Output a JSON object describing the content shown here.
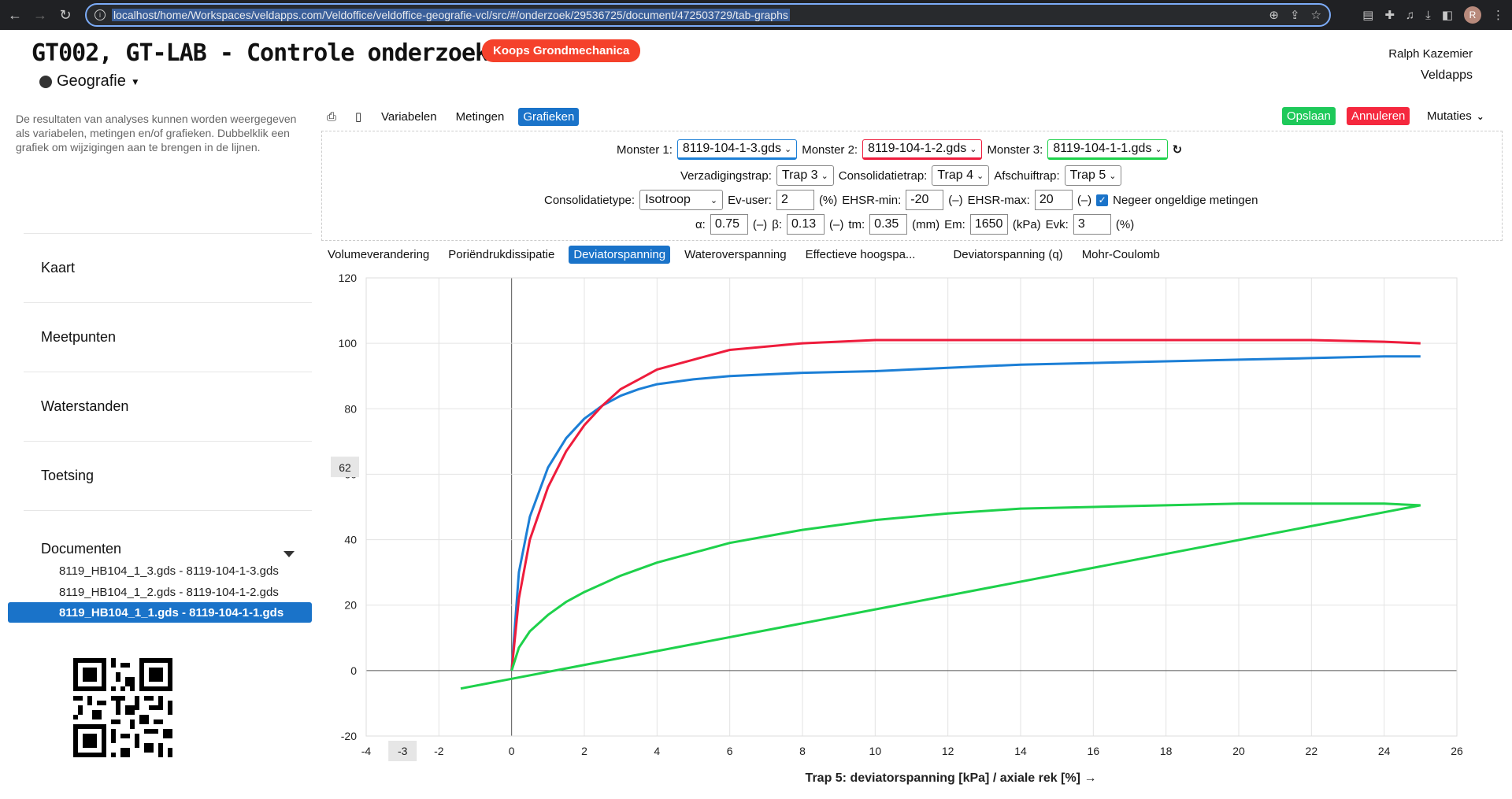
{
  "browser": {
    "url": "localhost/home/Workspaces/veldapps.com/Veldoffice/veldoffice-geografie-vcl/src/#/onderzoek/29536725/document/472503729/tab-graphs",
    "profile_initial": "R"
  },
  "header": {
    "title": "GT002, GT-LAB - Controle onderzoek",
    "badge": "Koops Grondmechanica",
    "app_menu": "Geografie",
    "user_name": "Ralph Kazemier",
    "org": "Veldapps"
  },
  "sidebar": {
    "description": "De resultaten van analyses kunnen worden weergegeven als variabelen, metingen en/of grafieken. Dubbelklik een grafiek om wijzigingen aan te brengen in de lijnen.",
    "items": [
      {
        "label": "Kaart"
      },
      {
        "label": "Meetpunten"
      },
      {
        "label": "Waterstanden"
      },
      {
        "label": "Toetsing"
      }
    ],
    "documents_label": "Documenten",
    "documents": [
      {
        "label": "8119_HB104_1_3.gds - 8119-104-1-3.gds"
      },
      {
        "label": "8119_HB104_1_2.gds - 8119-104-1-2.gds"
      },
      {
        "label": "8119_HB104_1_1.gds - 8119-104-1-1.gds"
      }
    ]
  },
  "toolbar": {
    "tabs": [
      "Variabelen",
      "Metingen",
      "Grafieken"
    ],
    "save": "Opslaan",
    "cancel": "Annuleren",
    "mutations": "Mutaties",
    "save_color": "#1ec95a",
    "cancel_color": "#f5283e"
  },
  "settings": {
    "monster1_label": "Monster 1:",
    "monster1": "8119-104-1-3.gds",
    "monster2_label": "Monster 2:",
    "monster2": "8119-104-1-2.gds",
    "monster3_label": "Monster 3:",
    "monster3": "8119-104-1-1.gds",
    "verzadiging_label": "Verzadigingstrap:",
    "verzadiging": "Trap 3",
    "consolidatie_label": "Consolidatietrap:",
    "consolidatie": "Trap 4",
    "afschuif_label": "Afschuiftrap:",
    "afschuif": "Trap 5",
    "consolidatietype_label": "Consolidatietype:",
    "consolidatietype": "Isotroop",
    "ev_user_label": "Ev-user:",
    "ev_user": "2",
    "ev_user_unit": "(%)",
    "ehsr_min_label": "EHSR-min:",
    "ehsr_min": "-20",
    "ehsr_min_unit": "(–)",
    "ehsr_max_label": "EHSR-max:",
    "ehsr_max": "20",
    "ehsr_max_unit": "(–)",
    "negeer_label": "Negeer ongeldige metingen",
    "alpha_label": "α:",
    "alpha": "0.75",
    "alpha_unit": "(–)",
    "beta_label": "β:",
    "beta": "0.13",
    "beta_unit": "(–)",
    "tm_label": "tm:",
    "tm": "0.35",
    "tm_unit": "(mm)",
    "em_label": "Em:",
    "em": "1650",
    "em_unit": "(kPa)",
    "evk_label": "Evk:",
    "evk": "3",
    "evk_unit": "(%)"
  },
  "chart_tabs": [
    "Volumeverandering",
    "Poriëndrukdissipatie",
    "Deviatorspanning",
    "Wateroverspanning",
    "Effectieve hoogspa...",
    "Deviatorspanning (q)",
    "Mohr-Coulomb"
  ],
  "chart_data": {
    "type": "line",
    "xlabel": "Trap 5: deviatorspanning [kPa] / axiale rek [%] →",
    "ylabel": "",
    "xlim": [
      -4,
      26
    ],
    "ylim": [
      -20,
      120
    ],
    "xticks": [
      -4,
      -2,
      0,
      2,
      4,
      6,
      8,
      10,
      12,
      14,
      16,
      18,
      20,
      22,
      24,
      26
    ],
    "yticks": [
      -20,
      0,
      20,
      40,
      60,
      80,
      100,
      120
    ],
    "crosshair_x_label": "-3",
    "crosshair_y_label": "62",
    "grid": true,
    "series": [
      {
        "color": "#1c7fd6",
        "x": [
          0,
          0.2,
          0.5,
          1,
          1.5,
          2,
          2.5,
          3,
          3.5,
          4,
          5,
          6,
          8,
          10,
          12,
          14,
          16,
          18,
          20,
          22,
          24,
          25
        ],
        "y": [
          0,
          30,
          47,
          62,
          71,
          77,
          81,
          84,
          86,
          87.5,
          89,
          90,
          91,
          91.5,
          92.5,
          93.5,
          94,
          94.5,
          95,
          95.5,
          96,
          96
        ]
      },
      {
        "color": "#ee1c3c",
        "x": [
          0,
          0.2,
          0.5,
          1,
          1.5,
          2,
          2.5,
          3,
          3.5,
          4,
          5,
          6,
          8,
          10,
          12,
          14,
          16,
          18,
          20,
          22,
          24,
          25
        ],
        "y": [
          0,
          22,
          40,
          56,
          67,
          75,
          81,
          86,
          89,
          92,
          95,
          98,
          100,
          101,
          101,
          101,
          101,
          101,
          101,
          101,
          100.5,
          100
        ]
      },
      {
        "color": "#1ed14b",
        "x": [
          0,
          0.2,
          0.5,
          1,
          1.5,
          2,
          3,
          4,
          5,
          6,
          7,
          8,
          10,
          12,
          14,
          16,
          18,
          20,
          22,
          24,
          25
        ],
        "y": [
          0,
          7,
          12,
          17,
          21,
          24,
          29,
          33,
          36,
          39,
          41,
          43,
          46,
          48,
          49.5,
          50,
          50.5,
          51,
          51,
          51,
          50.5
        ]
      },
      {
        "color": "#1ed14b",
        "x": [
          25,
          -1.4
        ],
        "y": [
          50.5,
          -5.5
        ]
      }
    ]
  }
}
